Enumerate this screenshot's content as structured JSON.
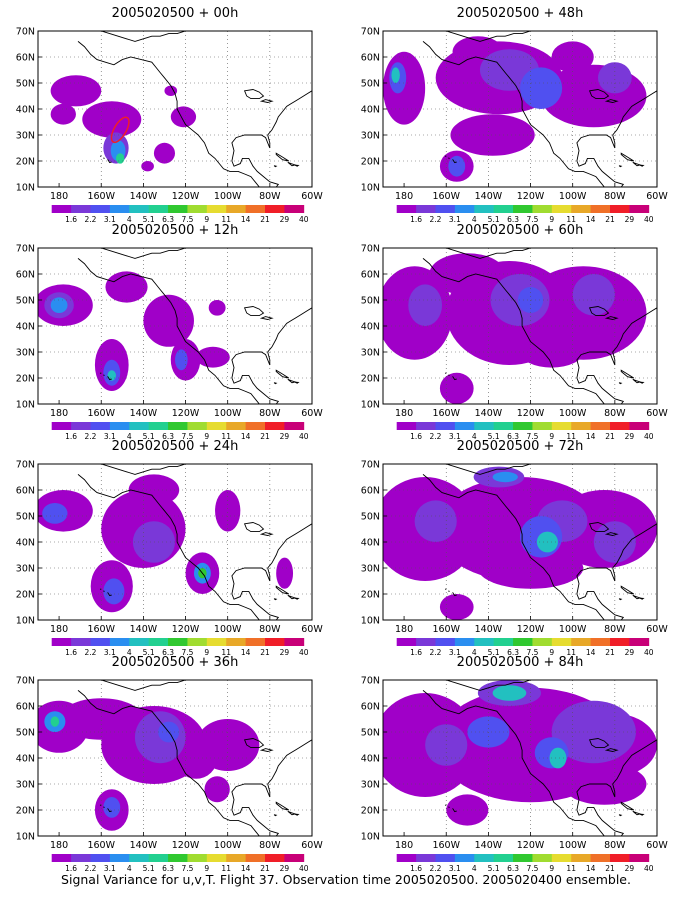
{
  "footer": "Signal Variance for u,v,T. Flight 37. Observation time 2005020500. 2005020400 ensemble.",
  "lat_labels": [
    "70N",
    "60N",
    "50N",
    "40N",
    "30N",
    "20N",
    "10N"
  ],
  "lon_labels": [
    "180",
    "160W",
    "140W",
    "120W",
    "100W",
    "80W",
    "60W"
  ],
  "colorbar": {
    "labels": [
      "1.6",
      "2.2",
      "3.1",
      "4",
      "5.1",
      "6.3",
      "7.5",
      "9",
      "11",
      "14",
      "21",
      "29",
      "40"
    ],
    "colors": [
      "#ffffff",
      "#a000c8",
      "#7a38d8",
      "#5050f0",
      "#2a8ef0",
      "#22c0c0",
      "#22d090",
      "#30c830",
      "#a0dc30",
      "#e6dc30",
      "#e8a828",
      "#f07028",
      "#f01e28",
      "#c80078"
    ]
  },
  "panels": [
    {
      "title": "2005020500 + 00h",
      "lead": 0
    },
    {
      "title": "2005020500 + 12h",
      "lead": 12
    },
    {
      "title": "2005020500 + 24h",
      "lead": 24
    },
    {
      "title": "2005020500 + 36h",
      "lead": 36
    },
    {
      "title": "2005020500 + 48h",
      "lead": 48
    },
    {
      "title": "2005020500 + 60h",
      "lead": 60
    },
    {
      "title": "2005020500 + 72h",
      "lead": 72
    },
    {
      "title": "2005020500 + 84h",
      "lead": 84
    }
  ]
}
